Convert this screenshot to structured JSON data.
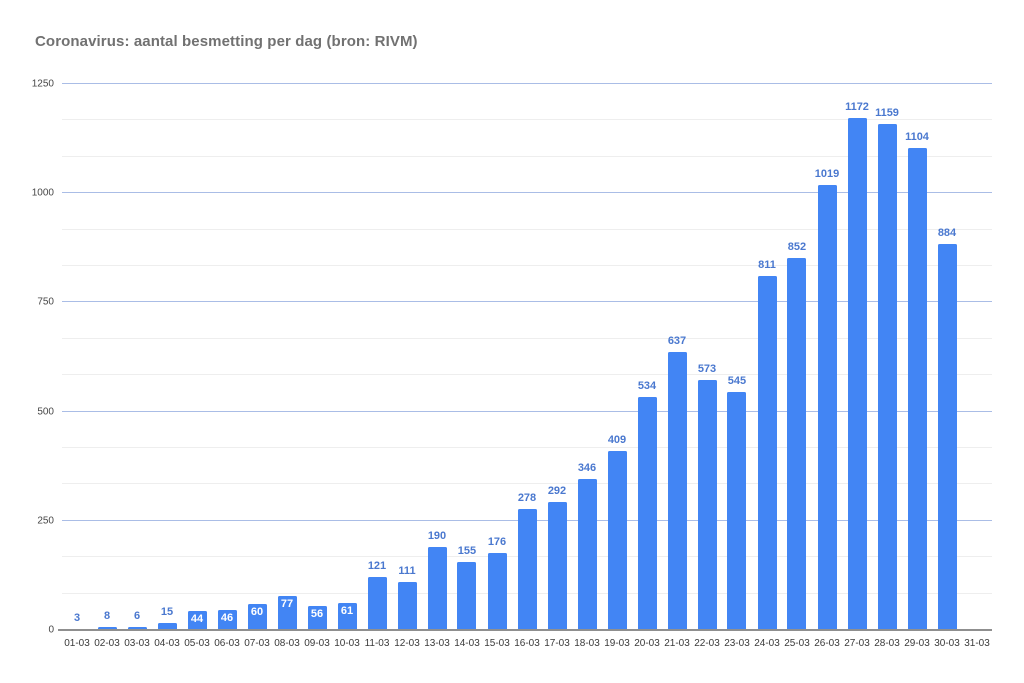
{
  "header": {
    "title": "Coronavirus: aantal besmetting per dag (bron: RIVM)"
  },
  "chart_data": {
    "type": "bar",
    "title": "Coronavirus: aantal besmetting per dag (bron: RIVM)",
    "categories": [
      "01-03",
      "02-03",
      "03-03",
      "04-03",
      "05-03",
      "06-03",
      "07-03",
      "08-03",
      "09-03",
      "10-03",
      "11-03",
      "12-03",
      "13-03",
      "14-03",
      "15-03",
      "16-03",
      "17-03",
      "18-03",
      "19-03",
      "20-03",
      "21-03",
      "22-03",
      "23-03",
      "24-03",
      "25-03",
      "26-03",
      "27-03",
      "28-03",
      "29-03",
      "30-03",
      "31-03"
    ],
    "values": [
      3,
      8,
      6,
      15,
      44,
      46,
      60,
      77,
      56,
      61,
      121,
      111,
      190,
      155,
      176,
      278,
      292,
      346,
      409,
      534,
      637,
      573,
      545,
      811,
      852,
      1019,
      1172,
      1159,
      1104,
      884,
      null
    ],
    "annotation_inside_indices": [
      4,
      5,
      6,
      7,
      8,
      9
    ],
    "xlabel": "",
    "ylabel": "",
    "ylim": [
      0,
      1250
    ],
    "y_major_ticks": [
      0,
      250,
      500,
      750,
      1000,
      1250
    ],
    "y_minor_divisions": 3,
    "grid": true,
    "legend": "none",
    "colors": {
      "bar": "#4285f4",
      "annotation": "#4a78cf",
      "annotation_inside": "#ffffff",
      "major_grid": "#aabde6",
      "minor_grid": "#eeeeee",
      "axis_line": "#8f8f8f",
      "x_label": "#3a3a3a",
      "y_label": "#474747",
      "title": "#717171",
      "background": "#ffffff"
    }
  }
}
